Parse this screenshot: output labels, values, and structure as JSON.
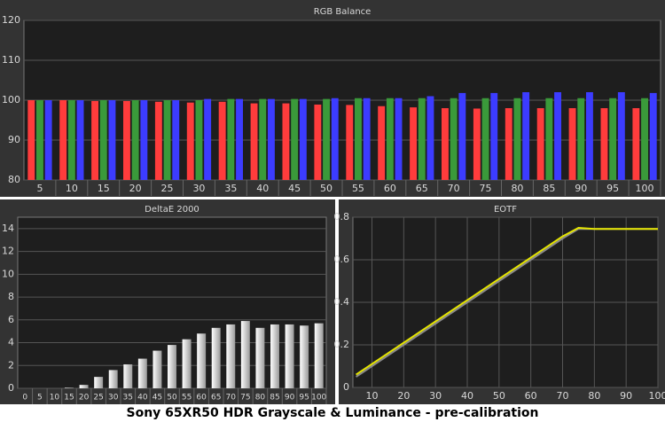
{
  "chart_data": [
    {
      "type": "grouped_bar",
      "title": "RGB Balance",
      "categories": [
        "5",
        "10",
        "15",
        "20",
        "25",
        "30",
        "35",
        "40",
        "45",
        "50",
        "55",
        "60",
        "65",
        "70",
        "75",
        "80",
        "85",
        "90",
        "95",
        "100"
      ],
      "series": [
        {
          "color": "#ff3c3c",
          "values": [
            100,
            100,
            99.8,
            99.8,
            99.6,
            99.4,
            99.6,
            99.2,
            99.2,
            98.9,
            98.8,
            98.5,
            98.2,
            98,
            97.9,
            98,
            98,
            98,
            98,
            98
          ]
        },
        {
          "color": "#3a9a3a",
          "values": [
            100,
            100,
            100,
            100,
            100,
            100,
            100.3,
            100.3,
            100.3,
            100.3,
            100.5,
            100.5,
            100.5,
            100.5,
            100.5,
            100.5,
            100.5,
            100.5,
            100.5,
            100.5
          ]
        },
        {
          "color": "#3c3cff",
          "values": [
            100,
            100,
            100,
            100,
            100,
            100.3,
            100.3,
            100.3,
            100.3,
            100.5,
            100.5,
            100.5,
            101,
            101.8,
            101.8,
            102,
            102,
            102,
            102,
            101.8
          ]
        }
      ],
      "ylim": [
        80,
        120
      ],
      "yticks": [
        80,
        90,
        100,
        110,
        120
      ],
      "grid": true
    },
    {
      "type": "bar",
      "title": "DeltaE 2000",
      "categories": [
        "0",
        "5",
        "10",
        "15",
        "20",
        "25",
        "30",
        "35",
        "40",
        "45",
        "50",
        "55",
        "60",
        "65",
        "70",
        "75",
        "80",
        "85",
        "90",
        "95",
        "100"
      ],
      "values": [
        0,
        0,
        0,
        0.05,
        0.3,
        1.0,
        1.6,
        2.1,
        2.6,
        3.3,
        3.8,
        4.3,
        4.8,
        5.3,
        5.6,
        5.9,
        5.3,
        5.6,
        5.6,
        5.5,
        5.7
      ],
      "ylim": [
        0,
        15
      ],
      "yticks": [
        0,
        2,
        4,
        6,
        8,
        10,
        12,
        14
      ],
      "grid": true
    },
    {
      "type": "line",
      "title": "EOTF",
      "x": [
        5,
        10,
        15,
        20,
        25,
        30,
        35,
        40,
        45,
        50,
        55,
        60,
        65,
        70,
        75,
        80,
        85,
        90,
        95,
        100
      ],
      "series": [
        {
          "color": "#8a8a8a",
          "values": [
            0.05,
            0.1,
            0.15,
            0.2,
            0.25,
            0.3,
            0.35,
            0.4,
            0.45,
            0.5,
            0.55,
            0.6,
            0.65,
            0.7,
            0.745,
            0.745,
            0.745,
            0.745,
            0.745,
            0.745
          ]
        },
        {
          "color": "#e6e600",
          "values": [
            0.06,
            0.11,
            0.16,
            0.21,
            0.26,
            0.31,
            0.36,
            0.41,
            0.46,
            0.51,
            0.56,
            0.61,
            0.66,
            0.71,
            0.75,
            0.745,
            0.745,
            0.745,
            0.745,
            0.745
          ]
        }
      ],
      "xlim": [
        4,
        100
      ],
      "xticks": [
        10,
        20,
        30,
        40,
        50,
        60,
        70,
        80,
        90,
        100
      ],
      "ylim": [
        0,
        0.8
      ],
      "yticks": [
        0,
        0.2,
        0.4,
        0.6,
        0.8
      ],
      "grid": true
    }
  ],
  "caption": "Sony 65XR50 HDR Grayscale & Luminance - pre-calibration"
}
